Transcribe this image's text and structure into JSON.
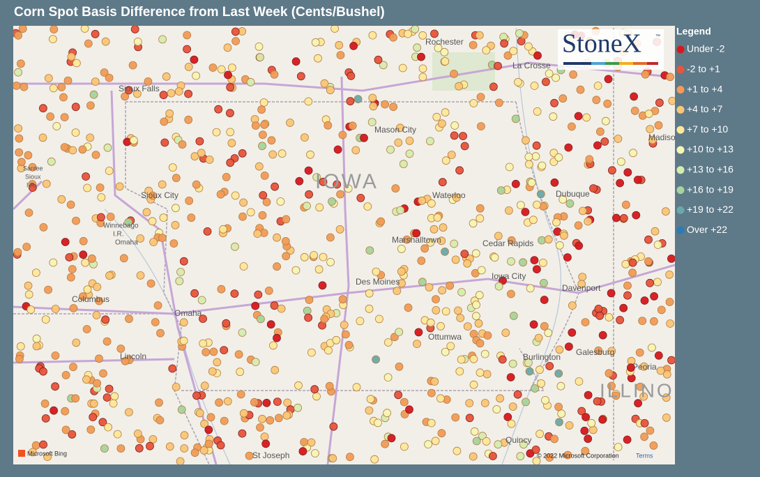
{
  "header": {
    "title": "Corn Spot Basis Difference from Last Week (Cents/Bushel)"
  },
  "legend": {
    "title": "Legend",
    "items": [
      {
        "label": "Under -2",
        "color": "#d7191c"
      },
      {
        "label": "-2 to +1",
        "color": "#e8553a"
      },
      {
        "label": "+1 to +4",
        "color": "#f39b57"
      },
      {
        "label": "+4 to +7",
        "color": "#fbc677"
      },
      {
        "label": "+7 to +10",
        "color": "#fee89a"
      },
      {
        "label": "+10 to +13",
        "color": "#f6f6b4"
      },
      {
        "label": "+13 to +16",
        "color": "#d5ecb0"
      },
      {
        "label": "+16 to +19",
        "color": "#a6d49c"
      },
      {
        "label": "+19 to +22",
        "color": "#6aa9a9"
      },
      {
        "label": "Over +22",
        "color": "#2b7bba"
      }
    ]
  },
  "map": {
    "labels": [
      "Rochester",
      "La Crosse",
      "Sioux Falls",
      "Mason City",
      "IOWA",
      "Santee",
      "Sioux",
      "I.R.",
      "Sioux City",
      "Waterloo",
      "Dubuque",
      "Madison",
      "Winnebago",
      "I.R.",
      "Omaha",
      "Marshalltown",
      "Cedar Rapids",
      "Iowa City",
      "Davenport",
      "Des Moines",
      "Columbus",
      "Omaha",
      "Ottumwa",
      "Galesburg",
      "Lincoln",
      "Burlington",
      "Peoria",
      "ILLINOIS",
      "Quincy",
      "St Joseph"
    ]
  },
  "logo": {
    "name": "StoneX",
    "mark": "™"
  },
  "attribution": {
    "provider": "Microsoft Bing",
    "copyright": "© 2022 Microsoft Corporation",
    "terms": "Terms"
  }
}
